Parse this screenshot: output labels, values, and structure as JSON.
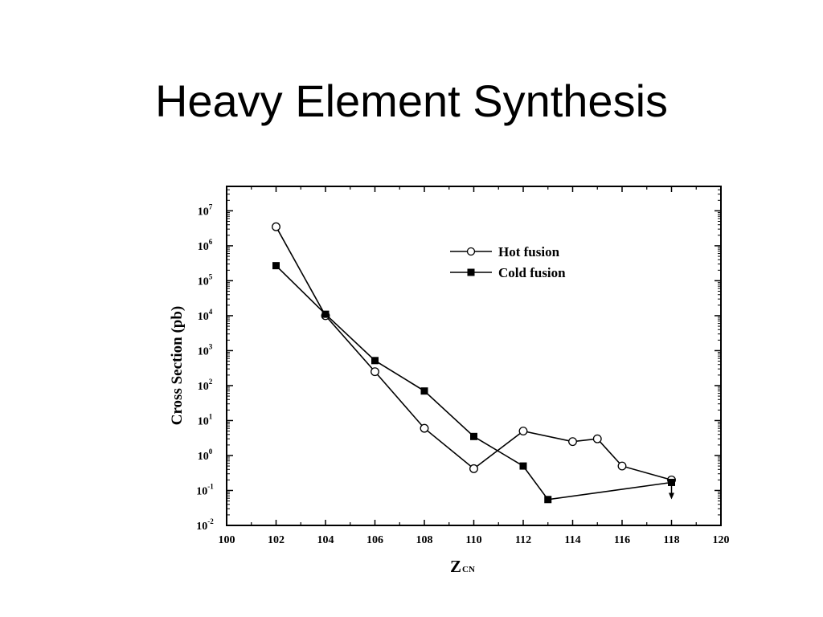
{
  "slide": {
    "title": "Heavy Element Synthesis"
  },
  "chart_data": {
    "type": "line",
    "xlabel": {
      "main": "Z",
      "sub": "CN"
    },
    "ylabel": "Cross Section (pb)",
    "xlim": [
      100,
      120
    ],
    "ylim": [
      0.01,
      50000000
    ],
    "y_scale": "log",
    "grid": false,
    "legend_position": "top-right",
    "x_ticks": [
      100,
      102,
      104,
      106,
      108,
      110,
      112,
      114,
      116,
      118,
      120
    ],
    "y_ticks": [
      {
        "value": 0.01,
        "base": "10",
        "exp": "-2"
      },
      {
        "value": 0.1,
        "base": "10",
        "exp": "-1"
      },
      {
        "value": 1,
        "base": "10",
        "exp": "0"
      },
      {
        "value": 10,
        "base": "10",
        "exp": "1"
      },
      {
        "value": 100,
        "base": "10",
        "exp": "2"
      },
      {
        "value": 1000,
        "base": "10",
        "exp": "3"
      },
      {
        "value": 10000,
        "base": "10",
        "exp": "4"
      },
      {
        "value": 100000,
        "base": "10",
        "exp": "5"
      },
      {
        "value": 1000000,
        "base": "10",
        "exp": "6"
      },
      {
        "value": 10000000,
        "base": "10",
        "exp": "7"
      }
    ],
    "series": [
      {
        "name": "Hot fusion",
        "marker": "open-circle",
        "x": [
          102,
          104,
          106,
          108,
          110,
          112,
          114,
          115,
          116,
          118
        ],
        "y": [
          3500000,
          10000,
          250,
          6,
          0.42,
          5,
          2.5,
          3,
          0.5,
          0.2
        ]
      },
      {
        "name": "Cold fusion",
        "marker": "filled-square",
        "x": [
          102,
          104,
          106,
          108,
          110,
          112,
          113,
          118
        ],
        "y": [
          270000,
          11000,
          520,
          70,
          3.5,
          0.5,
          0.055,
          0.17
        ]
      }
    ],
    "annotations": [
      {
        "type": "upper-limit-arrow",
        "series": "Cold fusion",
        "x": 118
      }
    ]
  }
}
